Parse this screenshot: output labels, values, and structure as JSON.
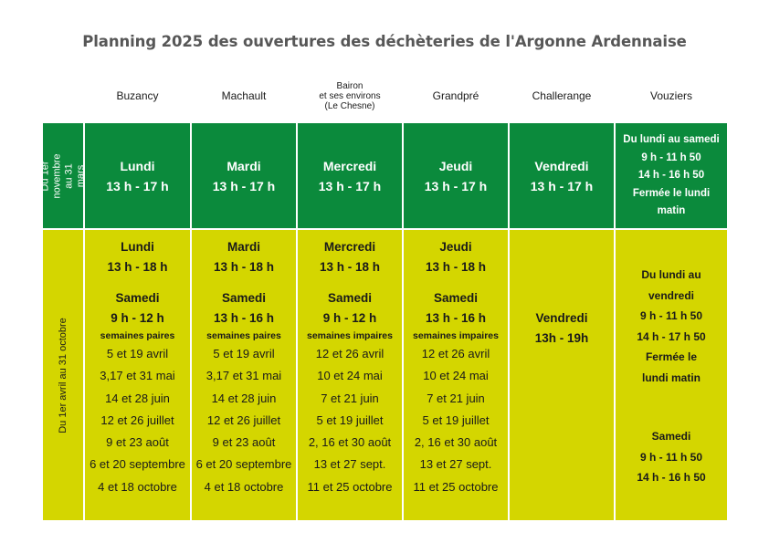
{
  "title": "Planning 2025 des ouvertures des déchèteries de l'Argonne Ardennaise",
  "columns": [
    {
      "name": "Buzancy"
    },
    {
      "name": "Machault"
    },
    {
      "name": "Bairon",
      "line2": "et ses environs",
      "line3": "(Le Chesne)"
    },
    {
      "name": "Grandpré"
    },
    {
      "name": "Challerange"
    },
    {
      "name": "Vouziers"
    }
  ],
  "periods": {
    "winter": "Du 1er novembre au 31 mars",
    "summer": "Du 1er avril au 31 octobre"
  },
  "winter_row": [
    {
      "day": "Lundi",
      "hours": "13 h - 17 h"
    },
    {
      "day": "Mardi",
      "hours": "13 h - 17 h"
    },
    {
      "day": "Mercredi",
      "hours": "13 h - 17 h"
    },
    {
      "day": "Jeudi",
      "hours": "13 h - 17 h"
    },
    {
      "day": "Vendredi",
      "hours": "13 h - 17 h"
    },
    {
      "lines": [
        "Du lundi au samedi",
        "9 h - 11 h 50",
        "14 h - 16 h 50",
        "Fermée le lundi",
        "matin"
      ]
    }
  ],
  "summer_row": [
    {
      "day": "Lundi",
      "hours": "13 h - 18 h",
      "sat": "Samedi",
      "sat_hours": "9 h - 12 h",
      "weeks": "semaines paires",
      "dates": [
        "5 et 19 avril",
        "3,17 et 31 mai",
        "14 et 28 juin",
        "12 et 26 juillet",
        "9 et 23 août",
        "6 et 20 septembre",
        "4 et 18 octobre"
      ]
    },
    {
      "day": "Mardi",
      "hours": "13 h - 18 h",
      "sat": "Samedi",
      "sat_hours": "13 h - 16 h",
      "weeks": "semaines paires",
      "dates": [
        "5 et 19 avril",
        "3,17 et 31 mai",
        "14 et 28 juin",
        "12 et 26 juillet",
        "9 et 23 août",
        "6 et 20 septembre",
        "4 et 18 octobre"
      ]
    },
    {
      "day": "Mercredi",
      "hours": "13 h - 18 h",
      "sat": "Samedi",
      "sat_hours": "9 h - 12 h",
      "weeks": "semaines impaires",
      "dates": [
        "12 et 26 avril",
        "10 et 24 mai",
        "7 et 21 juin",
        "5 et 19 juillet",
        "2, 16 et 30 août",
        "13 et 27 sept.",
        "11 et 25 octobre"
      ]
    },
    {
      "day": "Jeudi",
      "hours": "13 h - 18 h",
      "sat": "Samedi",
      "sat_hours": "13 h - 16 h",
      "weeks": "semaines impaires",
      "dates": [
        "12 et 26 avril",
        "10 et 24 mai",
        "7 et 21 juin",
        "5 et 19 juillet",
        "2, 16 et 30 août",
        "13 et 27 sept.",
        "11 et 25 octobre"
      ]
    },
    {
      "day": "Vendredi",
      "hours": "13h - 19h"
    },
    {
      "lines": [
        "Du lundi au",
        "vendredi",
        "9 h - 11 h 50",
        "14 h - 17 h 50",
        "Fermée le",
        "lundi matin"
      ],
      "sat_lines": [
        "Samedi",
        "9 h - 11 h 50",
        "14 h - 16 h 50"
      ]
    }
  ],
  "colors": {
    "dark_green": "#0b8a3c",
    "yellow_green": "#d4d600",
    "title_gray": "#575757"
  }
}
